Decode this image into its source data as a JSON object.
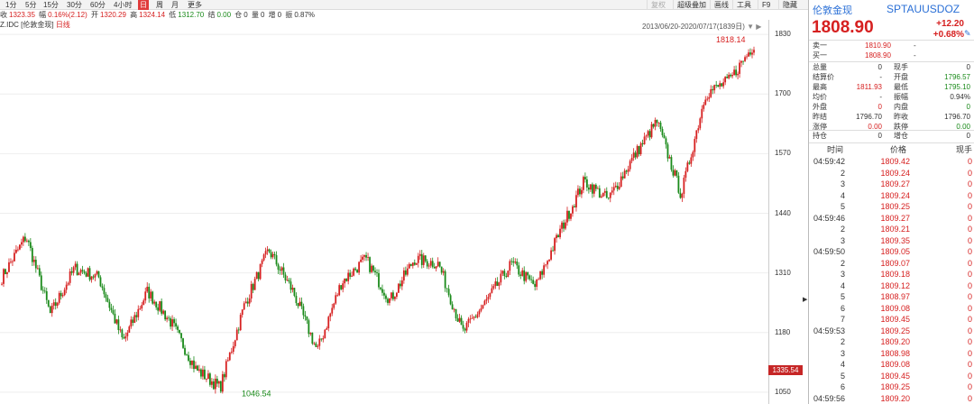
{
  "toolbar": {
    "periods": [
      "1分",
      "5分",
      "15分",
      "30分",
      "60分",
      "4小时",
      "日",
      "周",
      "月",
      "更多"
    ],
    "active_period": "日",
    "tools": [
      "复权",
      "超级叠加",
      "画线",
      "工具",
      "F9",
      "隐藏"
    ]
  },
  "infobar": {
    "close_label": "收",
    "close_value": "1323.35",
    "change_label": "幅",
    "change_value": "0.16%(2.12)",
    "open_label": "开",
    "open_value": "1320.29",
    "high_label": "高",
    "high_value": "1324.14",
    "low_label": "低",
    "low_value": "1312.70",
    "settle_label": "结",
    "settle_value": "0.00",
    "hold_label": "仓",
    "hold_value": "0",
    "vol_label": "量",
    "vol_value": "0",
    "inc_label": "增",
    "inc_value": "0",
    "amp_label": "振",
    "amp_value": "0.87%"
  },
  "chart_title": {
    "code": "Z.IDC",
    "name": "[伦敦金现]",
    "period": "日线"
  },
  "date_range": "2013/06/20-2020/07/17(1839日)",
  "chart_data": {
    "type": "candlestick",
    "y_ticks": [
      "1830",
      "1700",
      "1570",
      "1440",
      "1310",
      "1180",
      "1050"
    ],
    "ylim": [
      1040,
      1840
    ],
    "high_annotation": "1818.14",
    "low_annotation": "1046.54",
    "last_price_label": "1335.54",
    "trend": {
      "x": [
        "2013/06",
        "2013/08",
        "2013/12",
        "2014/03",
        "2014/06",
        "2014/11",
        "2015/01",
        "2015/05",
        "2015/08",
        "2015/12",
        "2016/03",
        "2016/07",
        "2016/10",
        "2016/12",
        "2017/04",
        "2017/09",
        "2017/12",
        "2018/01",
        "2018/04",
        "2018/08",
        "2018/12",
        "2019/02",
        "2019/05",
        "2019/06",
        "2019/09",
        "2019/12",
        "2020/01",
        "2020/03",
        "2020/03",
        "2020/04",
        "2020/06",
        "2020/07"
      ],
      "close": [
        1300,
        1390,
        1220,
        1320,
        1300,
        1160,
        1270,
        1200,
        1100,
        1060,
        1240,
        1360,
        1270,
        1140,
        1290,
        1340,
        1250,
        1340,
        1330,
        1180,
        1250,
        1330,
        1280,
        1400,
        1510,
        1470,
        1560,
        1640,
        1480,
        1700,
        1730,
        1808
      ]
    }
  },
  "panel": {
    "name": "伦敦金现",
    "code": "SPTAUUSDOZ",
    "price": "1808.90",
    "change": "+12.20",
    "change_pct": "+0.68%",
    "sell1_label": "卖一",
    "sell1_price": "1810.90",
    "sell1_vol": "-",
    "buy1_label": "买一",
    "buy1_price": "1808.90",
    "buy1_vol": "-",
    "stats": [
      {
        "l1": "总量",
        "v1": "0",
        "c1": "black",
        "l2": "现手",
        "v2": "0",
        "c2": "black"
      },
      {
        "l1": "结算价",
        "v1": "-",
        "c1": "black",
        "l2": "开盘",
        "v2": "1796.57",
        "c2": "green"
      },
      {
        "l1": "最高",
        "v1": "1811.93",
        "c1": "red",
        "l2": "最低",
        "v2": "1795.10",
        "c2": "green"
      },
      {
        "l1": "均价",
        "v1": "-",
        "c1": "black",
        "l2": "振幅",
        "v2": "0.94%",
        "c2": "black"
      },
      {
        "l1": "外盘",
        "v1": "0",
        "c1": "red",
        "l2": "内盘",
        "v2": "0",
        "c2": "green"
      },
      {
        "l1": "昨结",
        "v1": "1796.70",
        "c1": "black",
        "l2": "昨收",
        "v2": "1796.70",
        "c2": "black"
      },
      {
        "l1": "涨停",
        "v1": "0.00",
        "c1": "red",
        "l2": "跌停",
        "v2": "0.00",
        "c2": "green"
      }
    ],
    "hold_label": "持仓",
    "hold_value": "0",
    "inc_label": "增仓",
    "inc_value": "0",
    "trades_header": {
      "time": "时间",
      "price": "价格",
      "vol": "现手"
    },
    "trades": [
      {
        "t": "04:59:42",
        "p": "1809.42",
        "v": "0"
      },
      {
        "t": "2",
        "p": "1809.24",
        "v": "0"
      },
      {
        "t": "3",
        "p": "1809.27",
        "v": "0"
      },
      {
        "t": "4",
        "p": "1809.24",
        "v": "0"
      },
      {
        "t": "5",
        "p": "1809.25",
        "v": "0"
      },
      {
        "t": "04:59:46",
        "p": "1809.27",
        "v": "0"
      },
      {
        "t": "2",
        "p": "1809.21",
        "v": "0"
      },
      {
        "t": "3",
        "p": "1809.35",
        "v": "0"
      },
      {
        "t": "04:59:50",
        "p": "1809.05",
        "v": "0"
      },
      {
        "t": "2",
        "p": "1809.07",
        "v": "0"
      },
      {
        "t": "3",
        "p": "1809.18",
        "v": "0"
      },
      {
        "t": "4",
        "p": "1809.12",
        "v": "0"
      },
      {
        "t": "5",
        "p": "1808.97",
        "v": "0"
      },
      {
        "t": "6",
        "p": "1809.08",
        "v": "0"
      },
      {
        "t": "7",
        "p": "1809.45",
        "v": "0"
      },
      {
        "t": "04:59:53",
        "p": "1809.25",
        "v": "0"
      },
      {
        "t": "2",
        "p": "1809.20",
        "v": "0"
      },
      {
        "t": "3",
        "p": "1808.98",
        "v": "0"
      },
      {
        "t": "4",
        "p": "1809.08",
        "v": "0"
      },
      {
        "t": "5",
        "p": "1809.45",
        "v": "0"
      },
      {
        "t": "6",
        "p": "1809.25",
        "v": "0"
      },
      {
        "t": "04:59:56",
        "p": "1809.20",
        "v": "0"
      }
    ]
  },
  "colors": {
    "up": "#d62020",
    "down": "#1a8a1a",
    "accent": "#2a6fd6"
  }
}
